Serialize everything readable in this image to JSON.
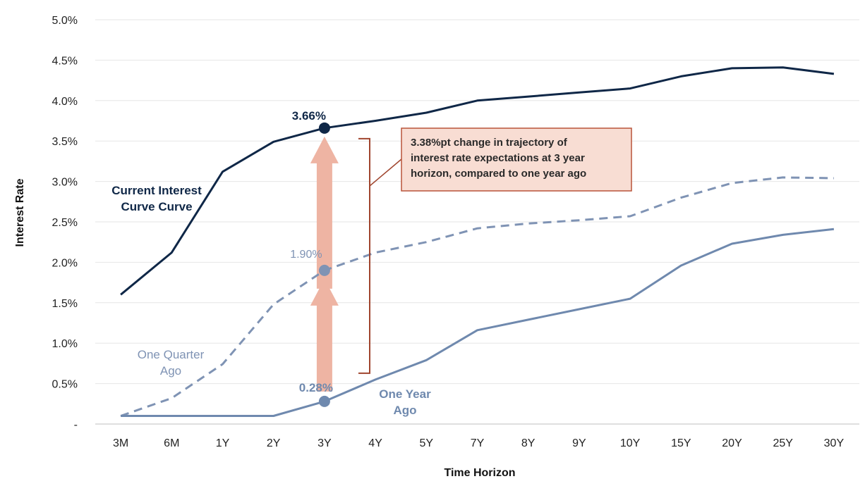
{
  "chart_data": {
    "type": "line",
    "xlabel": "Time Horizon",
    "ylabel": "Interest Rate",
    "categories": [
      "3M",
      "6M",
      "1Y",
      "2Y",
      "3Y",
      "4Y",
      "5Y",
      "7Y",
      "8Y",
      "9Y",
      "10Y",
      "15Y",
      "20Y",
      "25Y",
      "30Y"
    ],
    "ylim": [
      0,
      5.0
    ],
    "yticks": [
      {
        "value": 0,
        "label": "-"
      },
      {
        "value": 0.5,
        "label": "0.5%"
      },
      {
        "value": 1.0,
        "label": "1.0%"
      },
      {
        "value": 1.5,
        "label": "1.5%"
      },
      {
        "value": 2.0,
        "label": "2.0%"
      },
      {
        "value": 2.5,
        "label": "2.5%"
      },
      {
        "value": 3.0,
        "label": "3.0%"
      },
      {
        "value": 3.5,
        "label": "3.5%"
      },
      {
        "value": 4.0,
        "label": "4.0%"
      },
      {
        "value": 4.5,
        "label": "4.5%"
      },
      {
        "value": 5.0,
        "label": "5.0%"
      }
    ],
    "grid": true,
    "series": [
      {
        "name": "Current Interest Curve Curve",
        "label_lines": [
          "Current Interest",
          "Curve Curve"
        ],
        "color": "#0f2747",
        "dash": false,
        "values": [
          1.6,
          2.12,
          3.12,
          3.49,
          3.66,
          3.75,
          3.85,
          4.0,
          4.05,
          4.1,
          4.15,
          4.3,
          4.4,
          4.41,
          4.33
        ]
      },
      {
        "name": "One Quarter Ago",
        "label_lines": [
          "One Quarter",
          "Ago"
        ],
        "color": "#7f93b4",
        "dash": true,
        "values": [
          0.1,
          0.32,
          0.74,
          1.48,
          1.9,
          2.12,
          2.25,
          2.42,
          2.48,
          2.52,
          2.57,
          2.8,
          2.98,
          3.05,
          3.04
        ]
      },
      {
        "name": "One Year Ago",
        "label_lines": [
          "One Year",
          "Ago"
        ],
        "color": "#6f89ae",
        "dash": false,
        "values": [
          0.1,
          0.1,
          0.1,
          0.1,
          0.28,
          0.55,
          0.79,
          1.16,
          1.29,
          1.42,
          1.55,
          1.96,
          2.23,
          2.34,
          2.41
        ]
      }
    ],
    "highlight": {
      "category": "3Y",
      "points": [
        {
          "series": 0,
          "label": "3.66%",
          "color": "#0f2747"
        },
        {
          "series": 1,
          "label": "1.90%",
          "color": "#7f93b4"
        },
        {
          "series": 2,
          "label": "0.28%",
          "color": "#6f89ae"
        }
      ]
    },
    "annotation": {
      "text_lines": [
        "3.38%pt change in trajectory of",
        "interest rate expectations at 3 year",
        "horizon, compared to one year ago"
      ],
      "box_fill": "#f8ddd3",
      "box_stroke": "#b9543a",
      "arrow_color": "#eeb4a3",
      "bracket_color": "#a0452e"
    }
  }
}
